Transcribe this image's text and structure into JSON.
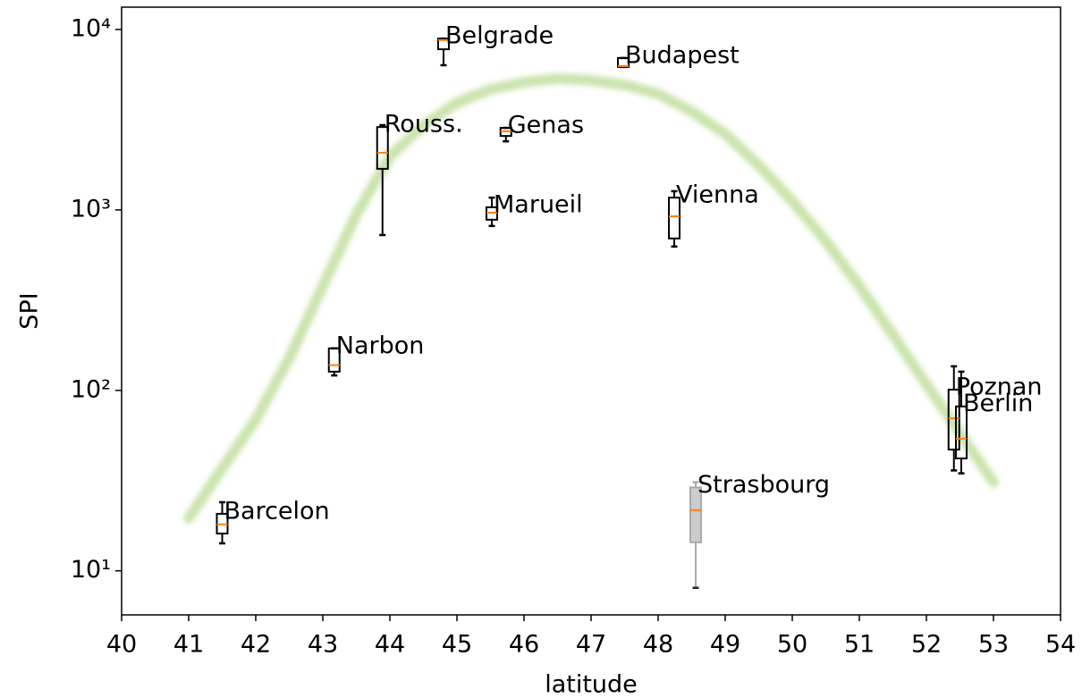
{
  "chart_data": {
    "type": "box",
    "xlabel": "latitude",
    "ylabel": "SPI",
    "xlim": [
      40,
      54
    ],
    "xticks": [
      40,
      41,
      42,
      43,
      44,
      45,
      46,
      47,
      48,
      49,
      50,
      51,
      52,
      53,
      54
    ],
    "ylim": [
      5.7,
      13300
    ],
    "log_y": true,
    "yticks": [
      {
        "value": 10,
        "label": "10¹"
      },
      {
        "value": 100,
        "label": "10²"
      },
      {
        "value": 1000,
        "label": "10³"
      },
      {
        "value": 10000,
        "label": "10⁴"
      }
    ],
    "median_color": "#ff7f0e",
    "boxes": [
      {
        "label": "Barcelon",
        "x": 41.5,
        "whislo": 14.2,
        "q1": 16.1,
        "med": 18.1,
        "q3": 20.7,
        "whishi": 24,
        "color": "#000000"
      },
      {
        "label": "Narbon",
        "x": 43.17,
        "whislo": 121,
        "q1": 127,
        "med": 138,
        "q3": 171,
        "whishi": 171,
        "color": "#000000"
      },
      {
        "label": "Rouss.",
        "x": 43.89,
        "whislo": 726,
        "q1": 1690,
        "med": 2075,
        "q3": 2880,
        "whishi": 2950,
        "color": "#000000"
      },
      {
        "label": "Belgrade",
        "x": 44.8,
        "whislo": 6340,
        "q1": 7770,
        "med": 8740,
        "q3": 8900,
        "whishi": 8900,
        "color": "#000000"
      },
      {
        "label": "Marueil",
        "x": 45.52,
        "whislo": 815,
        "q1": 883,
        "med": 966,
        "q3": 1035,
        "whishi": 1170,
        "color": "#000000"
      },
      {
        "label": "Genas",
        "x": 45.73,
        "whislo": 2400,
        "q1": 2570,
        "med": 2730,
        "q3": 2850,
        "whishi": 2850,
        "color": "#000000"
      },
      {
        "label": "Budapest",
        "x": 47.48,
        "whislo": 6200,
        "q1": 6200,
        "med": 6270,
        "q3": 6950,
        "whishi": 6950,
        "color": "#000000"
      },
      {
        "label": "Vienna",
        "x": 48.24,
        "whislo": 627,
        "q1": 695,
        "med": 922,
        "q3": 1170,
        "whishi": 1270,
        "color": "#000000"
      },
      {
        "label": "Strasbourg",
        "x": 48.56,
        "whislo": 8.05,
        "q1": 14.4,
        "med": 21.7,
        "q3": 29,
        "whishi": 31,
        "color": "#aaaaaa"
      },
      {
        "label": "Poznan",
        "x": 52.41,
        "whislo": 36,
        "q1": 47,
        "med": 70,
        "q3": 101,
        "whishi": 136,
        "color": "#000000"
      },
      {
        "label": "Berlin",
        "x": 52.52,
        "whislo": 34.7,
        "q1": 42,
        "med": 54,
        "q3": 81.5,
        "whishi": 127,
        "color": "#000000"
      }
    ],
    "trend": {
      "color": "#8bc34a",
      "x": [
        41,
        41.5,
        42,
        42.5,
        43,
        43.5,
        44,
        44.5,
        45,
        45.5,
        46,
        46.5,
        47,
        47.5,
        48,
        48.5,
        49,
        49.5,
        50,
        50.5,
        51,
        51.5,
        52,
        52.5,
        53
      ],
      "values": [
        19.6,
        37,
        69,
        151,
        379,
        944,
        1980,
        2950,
        3930,
        4660,
        5100,
        5350,
        5230,
        4930,
        4400,
        3510,
        2640,
        1770,
        1120,
        671,
        379,
        203,
        108,
        58,
        31
      ]
    }
  }
}
